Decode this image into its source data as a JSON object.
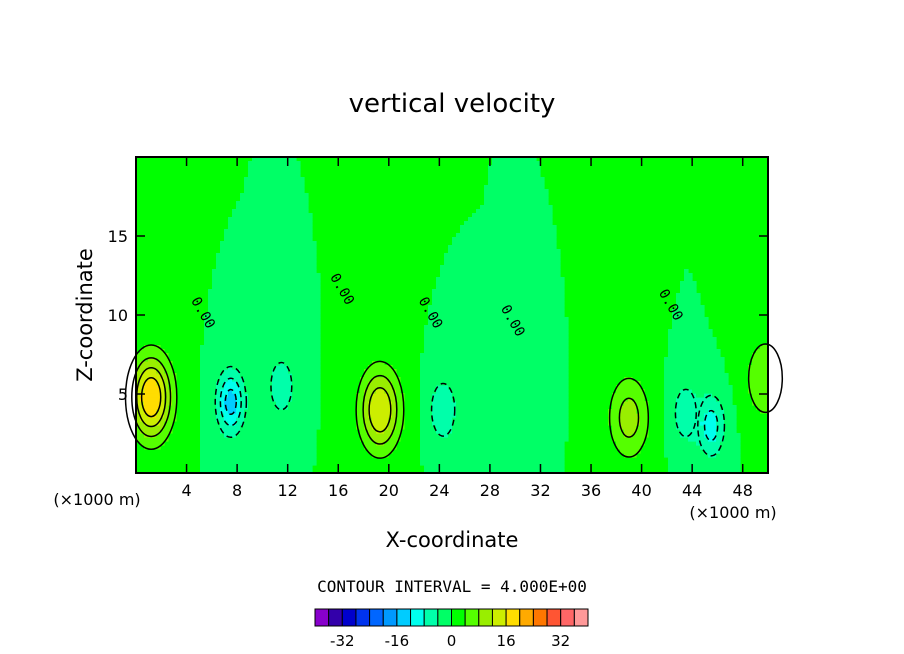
{
  "chart_data": {
    "type": "contour",
    "title": "vertical velocity",
    "xlabel": "X-coordinate",
    "ylabel": "Z-coordinate",
    "x_unit": "(×1000 m)",
    "y_unit": "(×1000 m)",
    "xlim": [
      0,
      50
    ],
    "ylim": [
      0,
      20
    ],
    "x_ticks": [
      4,
      8,
      12,
      16,
      20,
      24,
      28,
      32,
      36,
      40,
      44,
      48
    ],
    "y_ticks": [
      5,
      10,
      15
    ],
    "contour_interval_text": "CONTOUR INTERVAL = 4.000E+00",
    "zero_contour_label": "0.00",
    "colorbar": {
      "levels": [
        -36,
        -32,
        -28,
        -24,
        -20,
        -16,
        -12,
        -8,
        -4,
        0,
        4,
        8,
        12,
        16,
        20,
        24,
        28,
        32,
        36
      ],
      "tick_labels": [
        "-32",
        "-16",
        "0",
        "16",
        "32"
      ],
      "tick_values": [
        -32,
        -16,
        0,
        16,
        32
      ],
      "colors": [
        "#8800cc",
        "#3300aa",
        "#0000cc",
        "#0033ee",
        "#0066ff",
        "#0099ff",
        "#00ccff",
        "#00ffee",
        "#00ffaa",
        "#00ff66",
        "#00ff00",
        "#55ff00",
        "#99ee00",
        "#ccee00",
        "#ffdd00",
        "#ffaa00",
        "#ff7700",
        "#ff5533",
        "#ff6666",
        "#ff9999"
      ]
    },
    "features": [
      {
        "type": "updraft",
        "x": 1.2,
        "z": 4.8,
        "peak": 20
      },
      {
        "type": "downdraft",
        "x": 7.5,
        "z": 4.5,
        "peak": -14
      },
      {
        "type": "downdraft",
        "x": 11.5,
        "z": 5.5,
        "peak": -7
      },
      {
        "type": "updraft",
        "x": 19.3,
        "z": 4.0,
        "peak": 16
      },
      {
        "type": "downdraft",
        "x": 24.3,
        "z": 4.0,
        "peak": -8
      },
      {
        "type": "downdraft",
        "x": 31,
        "z": 4.5,
        "peak": -4
      },
      {
        "type": "updraft",
        "x": 39,
        "z": 3.5,
        "peak": 10
      },
      {
        "type": "downdraft",
        "x": 43.5,
        "z": 3.8,
        "peak": -7
      },
      {
        "type": "downdraft",
        "x": 45.5,
        "z": 3.0,
        "peak": -10
      },
      {
        "type": "updraft",
        "x": 49.8,
        "z": 6.0,
        "peak": 8
      }
    ]
  }
}
